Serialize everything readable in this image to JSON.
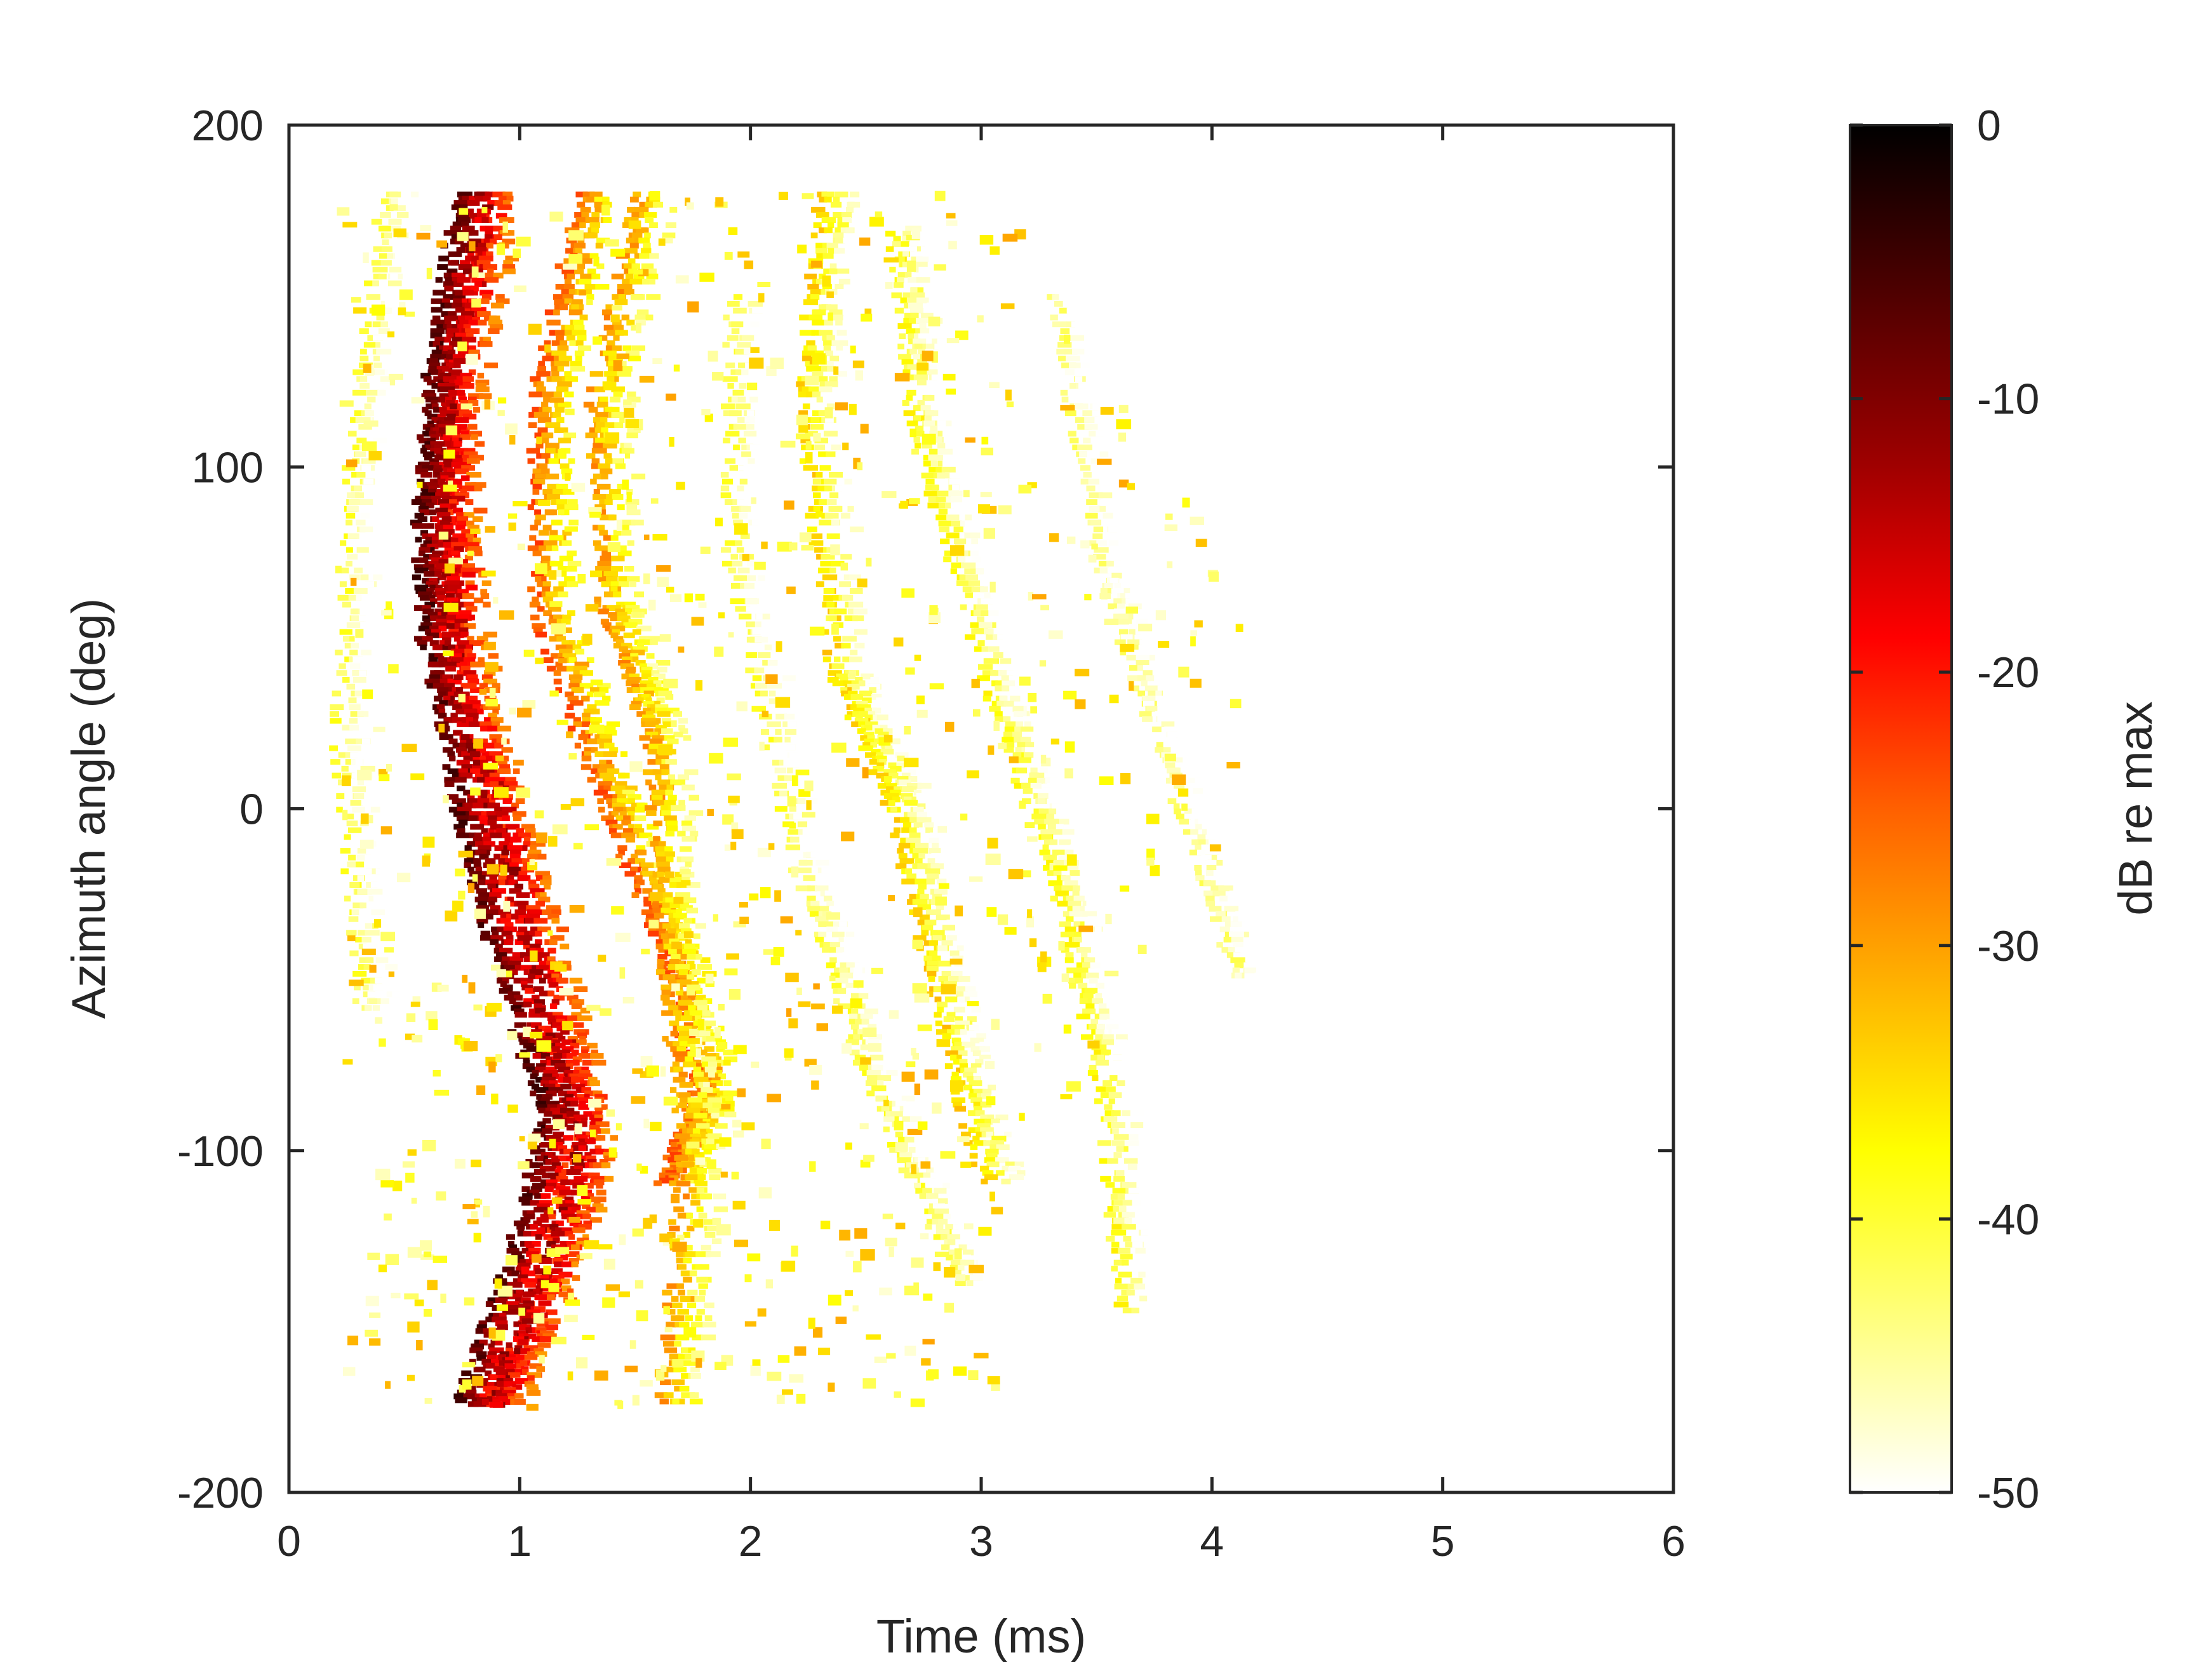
{
  "chart_data": {
    "type": "heatmap",
    "xlabel": "Time (ms)",
    "ylabel": "Azimuth angle (deg)",
    "xlim": [
      0,
      6
    ],
    "ylim": [
      -200,
      200
    ],
    "x_ticks": [
      0,
      1,
      2,
      3,
      4,
      5,
      6
    ],
    "x_tick_labels": [
      "0",
      "1",
      "2",
      "3",
      "4",
      "5",
      "6"
    ],
    "y_ticks": [
      -200,
      -100,
      0,
      100,
      200
    ],
    "y_tick_labels": [
      "-200",
      "-100",
      "0",
      "100",
      "200"
    ],
    "colorbar": {
      "label": "dB re max",
      "colormap": "hot (reversed)",
      "range": [
        -50,
        0
      ],
      "ticks": [
        0,
        -10,
        -20,
        -30,
        -40,
        -50
      ],
      "tick_labels": [
        "0",
        "-10",
        "-20",
        "-30",
        "-40",
        "-50"
      ],
      "colors": [
        "#ffffff",
        "#ffff80",
        "#ffff00",
        "#ffb000",
        "#ff6000",
        "#ff0000",
        "#a00000",
        "#500000",
        "#000000"
      ]
    },
    "data_extent": {
      "azimuth_range_deg": [
        -175,
        180
      ],
      "time_range_ms": [
        0.1,
        4.2
      ]
    },
    "ridges": [
      {
        "name_hint": "direct",
        "points": [
          [
            0.72,
            180
          ],
          [
            0.6,
            130
          ],
          [
            0.55,
            90
          ],
          [
            0.57,
            50
          ],
          [
            0.72,
            0
          ],
          [
            0.9,
            -50
          ],
          [
            1.1,
            -90
          ],
          [
            0.95,
            -130
          ],
          [
            0.72,
            -175
          ]
        ],
        "level_db": -4
      },
      {
        "name_hint": "direct-2",
        "points": [
          [
            0.82,
            180
          ],
          [
            0.68,
            130
          ],
          [
            0.64,
            90
          ],
          [
            0.7,
            40
          ],
          [
            0.9,
            -10
          ],
          [
            1.1,
            -60
          ],
          [
            1.25,
            -100
          ],
          [
            1.05,
            -140
          ],
          [
            0.85,
            -175
          ]
        ],
        "level_db": -10
      },
      {
        "name_hint": "reflection-1",
        "points": [
          [
            1.25,
            180
          ],
          [
            1.05,
            120
          ],
          [
            1.05,
            60
          ],
          [
            1.3,
            10
          ],
          [
            1.6,
            -40
          ],
          [
            1.75,
            -80
          ],
          [
            1.6,
            -110
          ]
        ],
        "level_db": -22
      },
      {
        "name_hint": "reflection-2",
        "points": [
          [
            1.5,
            180
          ],
          [
            1.3,
            120
          ],
          [
            1.35,
            60
          ],
          [
            1.55,
            20
          ],
          [
            1.6,
            -40
          ],
          [
            1.7,
            -100
          ],
          [
            1.6,
            -175
          ]
        ],
        "level_db": -27
      },
      {
        "name_hint": "late-1",
        "points": [
          [
            2.3,
            180
          ],
          [
            2.2,
            120
          ],
          [
            2.35,
            40
          ],
          [
            2.6,
            0
          ],
          [
            2.8,
            -60
          ],
          [
            3.0,
            -110
          ]
        ],
        "level_db": -32
      },
      {
        "name_hint": "late-2",
        "points": [
          [
            2.6,
            170
          ],
          [
            2.7,
            110
          ],
          [
            3.0,
            40
          ],
          [
            3.3,
            -20
          ],
          [
            3.5,
            -80
          ],
          [
            3.6,
            -150
          ]
        ],
        "level_db": -36
      },
      {
        "name_hint": "late-3",
        "points": [
          [
            3.3,
            150
          ],
          [
            3.5,
            70
          ],
          [
            3.8,
            10
          ],
          [
            4.1,
            -50
          ]
        ],
        "level_db": -41
      },
      {
        "name_hint": "late-4",
        "points": [
          [
            1.9,
            150
          ],
          [
            1.9,
            70
          ],
          [
            2.2,
            -20
          ],
          [
            2.5,
            -80
          ],
          [
            2.9,
            -140
          ]
        ],
        "level_db": -38
      },
      {
        "name_hint": "late-5",
        "points": [
          [
            0.4,
            180
          ],
          [
            0.25,
            100
          ],
          [
            0.2,
            20
          ],
          [
            0.3,
            -60
          ]
        ],
        "level_db": -38
      }
    ]
  }
}
